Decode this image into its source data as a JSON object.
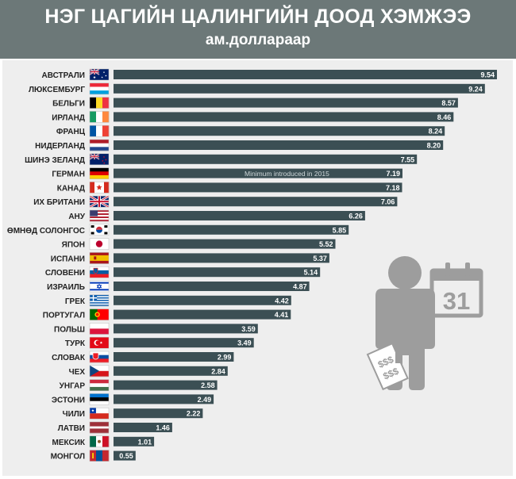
{
  "header": {
    "title": "НЭГ ЦАГИЙН ЦАЛИНГИЙН ДООД ХЭМЖЭЭ",
    "subtitle": "ам.доллараар"
  },
  "illustration": {
    "calendar_day": "31",
    "money_label": "$$$"
  },
  "colors": {
    "header_bg": "#6c7878",
    "panel_bg": "#eeeeee",
    "bar": "#3b4f54",
    "icon": "#9d9d9d"
  },
  "chart_data": {
    "type": "bar",
    "orientation": "horizontal",
    "categories": [
      "АВСТРАЛИ",
      "ЛЮКСЕМБУРГ",
      "БЕЛЬГИ",
      "ИРЛАНД",
      "ФРАНЦ",
      "НИДЕРЛАНД",
      "ШИНЭ ЗЕЛАНД",
      "ГЕРМАН",
      "КАНАД",
      "ИХ БРИТАНИ",
      "АНУ",
      "ӨМНӨД СОЛОНГОС",
      "ЯПОН",
      "ИСПАНИ",
      "СЛОВЕНИ",
      "ИЗРАИЛЬ",
      "ГРЕК",
      "ПОРТУГАЛ",
      "ПОЛЬШ",
      "ТУРК",
      "СЛОВАК",
      "ЧЕХ",
      "УНГАР",
      "ЭСТОНИ",
      "ЧИЛИ",
      "ЛАТВИ",
      "МЕКСИК",
      "МОНГОЛ"
    ],
    "values": [
      9.54,
      9.24,
      8.57,
      8.46,
      8.24,
      8.2,
      7.55,
      7.19,
      7.18,
      7.06,
      6.26,
      5.85,
      5.52,
      5.37,
      5.14,
      4.87,
      4.42,
      4.41,
      3.59,
      3.49,
      2.99,
      2.84,
      2.58,
      2.49,
      2.22,
      1.46,
      1.01,
      0.55
    ],
    "value_labels": [
      "9.54",
      "9.24",
      "8.57",
      "8.46",
      "8.24",
      "8.20",
      "7.55",
      "7.19",
      "7.18",
      "7.06",
      "6.26",
      "5.85",
      "5.52",
      "5.37",
      "5.14",
      "4.87",
      "4.42",
      "4.41",
      "3.59",
      "3.49",
      "2.99",
      "2.84",
      "2.58",
      "2.49",
      "2.22",
      "1.46",
      "1.01",
      "0.55"
    ],
    "flags": [
      "flag-australia",
      "flag-luxembourg",
      "flag-belgium",
      "flag-ireland",
      "flag-france",
      "flag-netherlands",
      "flag-new-zealand",
      "flag-germany",
      "flag-canada",
      "flag-united-kingdom",
      "flag-usa",
      "flag-south-korea",
      "flag-japan",
      "flag-spain",
      "flag-slovenia",
      "flag-israel",
      "flag-greece",
      "flag-portugal",
      "flag-poland",
      "flag-turkey",
      "flag-slovakia",
      "flag-czech",
      "flag-hungary",
      "flag-estonia",
      "flag-chile",
      "flag-latvia",
      "flag-mexico",
      "flag-mongolia"
    ],
    "annotation": {
      "category": "ГЕРМАН",
      "text": "Minimum introduced in 2015"
    },
    "xlim": [
      0,
      9.54
    ],
    "grid": false,
    "legend": false
  }
}
